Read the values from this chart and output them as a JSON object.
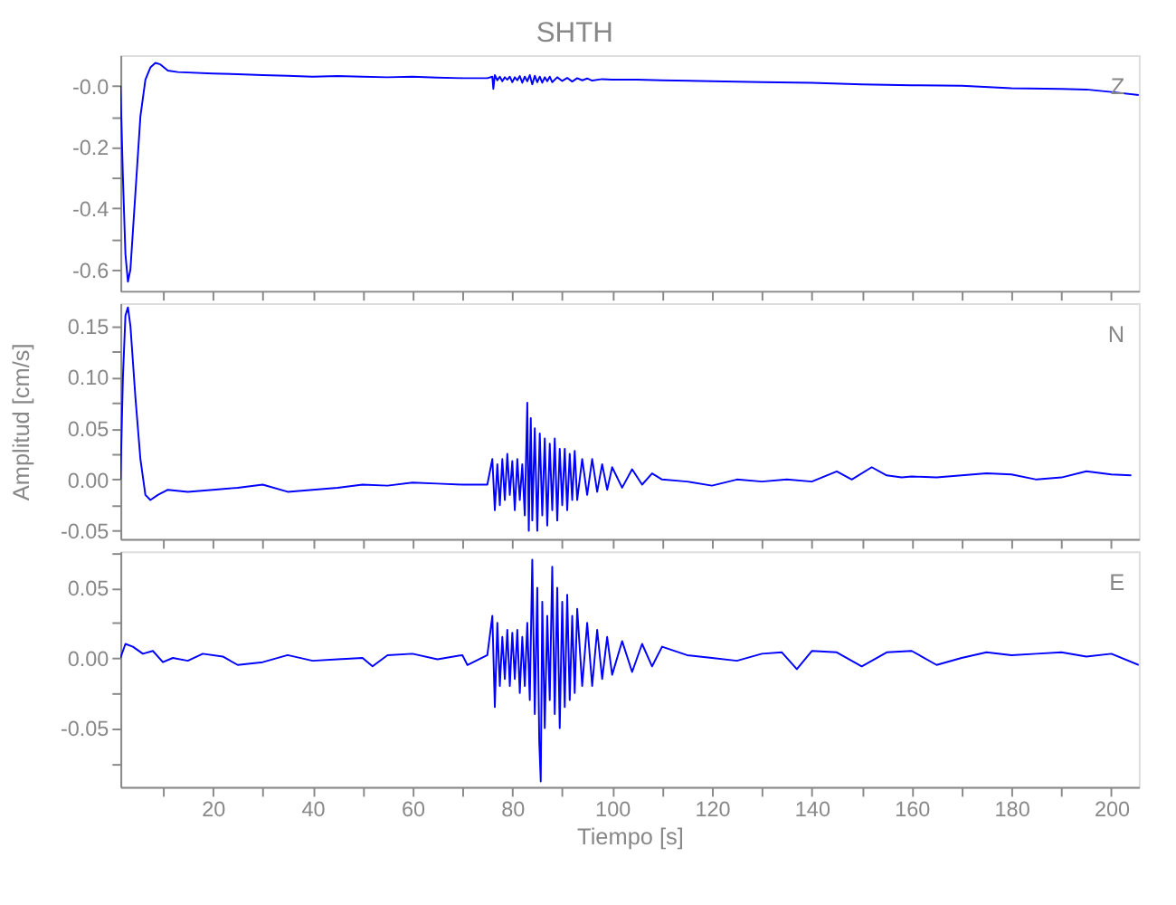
{
  "chart_data": [
    {
      "type": "line",
      "title": "SHTH",
      "annotations": [
        "Z"
      ],
      "grid": false,
      "tick_labels": "y",
      "xlim": [
        1.5,
        205.5
      ],
      "xticks": [
        {
          "value": 10,
          "label": null
        },
        {
          "value": 20,
          "label": null
        },
        {
          "value": 30,
          "label": null
        },
        {
          "value": 40,
          "label": null
        },
        {
          "value": 50,
          "label": null
        },
        {
          "value": 60,
          "label": null
        },
        {
          "value": 70,
          "label": null
        },
        {
          "value": 80,
          "label": null
        },
        {
          "value": 90,
          "label": null
        },
        {
          "value": 100,
          "label": null
        },
        {
          "value": 110,
          "label": null
        },
        {
          "value": 120,
          "label": null
        },
        {
          "value": 130,
          "label": null
        },
        {
          "value": 140,
          "label": null
        },
        {
          "value": 150,
          "label": null
        },
        {
          "value": 160,
          "label": null
        },
        {
          "value": 170,
          "label": null
        },
        {
          "value": 180,
          "label": null
        },
        {
          "value": 190,
          "label": null
        },
        {
          "value": 200,
          "label": null
        }
      ],
      "ylim": [
        -0.67,
        0.1
      ],
      "yticks": [
        {
          "value": 0,
          "label": "-0.0"
        },
        {
          "value": -0.1,
          "label": null
        },
        {
          "value": -0.2,
          "label": "-0.2"
        },
        {
          "value": -0.3,
          "label": null
        },
        {
          "value": -0.4,
          "label": "-0.4"
        },
        {
          "value": -0.5,
          "label": null
        },
        {
          "value": -0.6,
          "label": "-0.6"
        }
      ],
      "series": [
        {
          "color": "#0000ff",
          "x": [
            1.5,
            2,
            2.5,
            3,
            3.5,
            4.5,
            5.5,
            6.5,
            7.5,
            8.5,
            9.5,
            11,
            13,
            20,
            25,
            30,
            35,
            40,
            45,
            50,
            55,
            60,
            65,
            70,
            75,
            76,
            76.2,
            76.5,
            77,
            77.5,
            78,
            78.5,
            79,
            79.5,
            80,
            80.5,
            81,
            81.5,
            82,
            82.5,
            83,
            83.5,
            84,
            84.5,
            85,
            85.5,
            86,
            86.5,
            87,
            87.5,
            88,
            89,
            90,
            91,
            92,
            93,
            94,
            95,
            96,
            98,
            100,
            105,
            110,
            120,
            130,
            140,
            150,
            160,
            170,
            180,
            190,
            195,
            200,
            205.5
          ],
          "values": [
            0.0,
            -0.3,
            -0.55,
            -0.64,
            -0.6,
            -0.35,
            -0.1,
            0.02,
            0.06,
            0.075,
            0.07,
            0.05,
            0.045,
            0.04,
            0.038,
            0.035,
            0.033,
            0.03,
            0.032,
            0.03,
            0.028,
            0.03,
            0.027,
            0.025,
            0.025,
            0.03,
            -0.01,
            0.035,
            0.018,
            0.03,
            0.015,
            0.028,
            0.02,
            0.03,
            0.012,
            0.028,
            0.018,
            0.032,
            0.01,
            0.03,
            0.015,
            0.035,
            0.005,
            0.033,
            0.012,
            0.03,
            0.01,
            0.028,
            0.015,
            0.03,
            0.012,
            0.028,
            0.016,
            0.026,
            0.014,
            0.025,
            0.018,
            0.024,
            0.017,
            0.022,
            0.02,
            0.02,
            0.018,
            0.015,
            0.012,
            0.01,
            0.005,
            0.002,
            0.0,
            -0.008,
            -0.01,
            -0.012,
            -0.02,
            -0.03
          ]
        }
      ]
    },
    {
      "type": "line",
      "ylabel": "Amplitud [cm/s]",
      "annotations": [
        "N"
      ],
      "grid": false,
      "tick_labels": "y",
      "xlim": [
        1.5,
        205.5
      ],
      "xticks": [
        {
          "value": 10,
          "label": null
        },
        {
          "value": 20,
          "label": null
        },
        {
          "value": 30,
          "label": null
        },
        {
          "value": 40,
          "label": null
        },
        {
          "value": 50,
          "label": null
        },
        {
          "value": 60,
          "label": null
        },
        {
          "value": 70,
          "label": null
        },
        {
          "value": 80,
          "label": null
        },
        {
          "value": 90,
          "label": null
        },
        {
          "value": 100,
          "label": null
        },
        {
          "value": 110,
          "label": null
        },
        {
          "value": 120,
          "label": null
        },
        {
          "value": 130,
          "label": null
        },
        {
          "value": 140,
          "label": null
        },
        {
          "value": 150,
          "label": null
        },
        {
          "value": 160,
          "label": null
        },
        {
          "value": 170,
          "label": null
        },
        {
          "value": 180,
          "label": null
        },
        {
          "value": 190,
          "label": null
        },
        {
          "value": 200,
          "label": null
        }
      ],
      "ylim": [
        -0.058,
        0.172
      ],
      "yticks": [
        {
          "value": 0.15,
          "label": "0.15"
        },
        {
          "value": 0.125,
          "label": null
        },
        {
          "value": 0.1,
          "label": "0.10"
        },
        {
          "value": 0.075,
          "label": null
        },
        {
          "value": 0.05,
          "label": "0.05"
        },
        {
          "value": 0.025,
          "label": null
        },
        {
          "value": 0,
          "label": "0.00"
        },
        {
          "value": -0.025,
          "label": null
        },
        {
          "value": -0.05,
          "label": "-0.05"
        }
      ],
      "series": [
        {
          "color": "#0000ff",
          "x": [
            1.5,
            2,
            2.5,
            3,
            3.5,
            4.5,
            5.5,
            6.5,
            7.5,
            9,
            11,
            15,
            20,
            25,
            30,
            35,
            40,
            45,
            50,
            55,
            60,
            65,
            70,
            75,
            76,
            76.5,
            77,
            77.5,
            78,
            78.5,
            79,
            79.5,
            80,
            80.5,
            81,
            81.5,
            82,
            82.5,
            83,
            83.3,
            83.7,
            84,
            84.5,
            85,
            85.5,
            86,
            86.5,
            87,
            87.5,
            88,
            88.5,
            89,
            89.5,
            90,
            90.5,
            91,
            91.5,
            92,
            92.5,
            93,
            94,
            95,
            96,
            97,
            98,
            99,
            100,
            102,
            104,
            106,
            108,
            110,
            115,
            120,
            125,
            130,
            135,
            140,
            145,
            148,
            152,
            155,
            158,
            160,
            165,
            170,
            175,
            180,
            185,
            190,
            195,
            200,
            204
          ],
          "values": [
            0.0,
            0.1,
            0.16,
            0.168,
            0.15,
            0.08,
            0.02,
            -0.015,
            -0.02,
            -0.015,
            -0.01,
            -0.012,
            -0.01,
            -0.008,
            -0.005,
            -0.012,
            -0.01,
            -0.008,
            -0.005,
            -0.006,
            -0.003,
            -0.004,
            -0.005,
            -0.005,
            0.02,
            -0.03,
            0.015,
            -0.025,
            0.02,
            -0.02,
            0.025,
            -0.015,
            0.018,
            -0.03,
            0.02,
            -0.02,
            0.015,
            -0.035,
            0.075,
            -0.05,
            0.06,
            -0.04,
            0.05,
            -0.05,
            0.045,
            -0.035,
            0.04,
            -0.045,
            0.035,
            -0.03,
            0.04,
            -0.04,
            0.03,
            -0.025,
            0.03,
            -0.03,
            0.025,
            -0.02,
            0.028,
            -0.02,
            0.02,
            -0.015,
            0.02,
            -0.012,
            0.015,
            -0.01,
            0.012,
            -0.008,
            0.01,
            -0.005,
            0.006,
            0.0,
            -0.002,
            -0.006,
            0.0,
            -0.002,
            0.0,
            -0.002,
            0.008,
            0.0,
            0.012,
            0.004,
            0.002,
            0.003,
            0.002,
            0.004,
            0.006,
            0.005,
            0.0,
            0.002,
            0.008,
            0.005,
            0.004
          ]
        }
      ]
    },
    {
      "type": "line",
      "xlabel": "Tiempo [s]",
      "annotations": [
        "E"
      ],
      "grid": false,
      "xlim": [
        1.5,
        205.5
      ],
      "xticks": [
        {
          "value": 10,
          "label": null
        },
        20,
        {
          "value": 30,
          "label": null
        },
        40,
        {
          "value": 50,
          "label": null
        },
        60,
        {
          "value": 70,
          "label": null
        },
        80,
        {
          "value": 90,
          "label": null
        },
        100,
        {
          "value": 110,
          "label": null
        },
        120,
        {
          "value": 130,
          "label": null
        },
        140,
        {
          "value": 150,
          "label": null
        },
        160,
        {
          "value": 170,
          "label": null
        },
        180,
        {
          "value": 190,
          "label": null
        },
        200
      ],
      "ylim": [
        -0.092,
        0.076
      ],
      "yticks": [
        {
          "value": 0.075,
          "label": null
        },
        {
          "value": 0.05,
          "label": "0.05"
        },
        {
          "value": 0.025,
          "label": null
        },
        {
          "value": 0,
          "label": "0.00"
        },
        {
          "value": -0.025,
          "label": null
        },
        {
          "value": -0.05,
          "label": "-0.05"
        },
        {
          "value": -0.075,
          "label": null
        }
      ],
      "series": [
        {
          "color": "#0000ff",
          "x": [
            1.5,
            2.5,
            4,
            6,
            8,
            10,
            12,
            15,
            18,
            22,
            25,
            30,
            35,
            40,
            45,
            50,
            52,
            55,
            60,
            65,
            70,
            71,
            75,
            76,
            76.5,
            77,
            77.5,
            78,
            78.5,
            79,
            79.5,
            80,
            80.5,
            81,
            81.5,
            82,
            82.5,
            83,
            83.5,
            84,
            84.5,
            85,
            85.4,
            85.7,
            86,
            86.5,
            87,
            87.5,
            88,
            88.5,
            89,
            89.5,
            90,
            90.5,
            91,
            91.5,
            92,
            92.5,
            93,
            94,
            95,
            96,
            97,
            98,
            99,
            100,
            102,
            104,
            106,
            108,
            110,
            115,
            120,
            125,
            130,
            134,
            137,
            140,
            145,
            150,
            155,
            160,
            165,
            170,
            175,
            180,
            185,
            190,
            195,
            200,
            205.5
          ],
          "values": [
            0.0,
            0.01,
            0.008,
            0.003,
            0.005,
            -0.003,
            0.0,
            -0.002,
            0.003,
            0.001,
            -0.005,
            -0.003,
            0.002,
            -0.002,
            -0.001,
            0.0,
            -0.006,
            0.002,
            0.003,
            -0.001,
            0.002,
            -0.005,
            0.002,
            0.03,
            -0.035,
            0.025,
            -0.02,
            0.015,
            -0.015,
            0.02,
            -0.02,
            0.018,
            -0.015,
            0.02,
            -0.025,
            0.015,
            -0.02,
            0.025,
            -0.03,
            0.07,
            -0.04,
            0.05,
            -0.06,
            -0.088,
            0.04,
            -0.05,
            0.03,
            -0.03,
            0.065,
            -0.04,
            0.05,
            -0.05,
            0.04,
            -0.035,
            0.045,
            -0.03,
            0.03,
            -0.025,
            0.035,
            -0.02,
            0.025,
            -0.02,
            0.02,
            -0.015,
            0.015,
            -0.012,
            0.012,
            -0.01,
            0.01,
            -0.006,
            0.008,
            0.002,
            0.0,
            -0.002,
            0.003,
            0.004,
            -0.008,
            0.005,
            0.004,
            -0.006,
            0.004,
            0.005,
            -0.005,
            0.0,
            0.004,
            0.002,
            0.003,
            0.004,
            0.001,
            0.003,
            -0.005
          ]
        }
      ]
    }
  ]
}
